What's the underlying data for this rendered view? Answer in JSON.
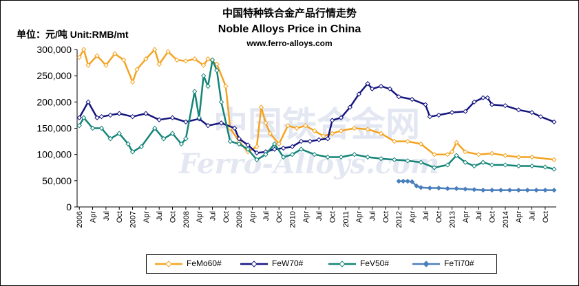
{
  "header": {
    "title_cn": "中国特种铁合金产品行情走势",
    "title_en": "Noble Alloys Price in China",
    "website": "www.ferro-alloys.com",
    "unit": "单位：元/吨 Unit:RMB/mt"
  },
  "watermark": {
    "cn": "中国铁合金网",
    "en": "Ferro-Alloys.com"
  },
  "colors": {
    "FeMo60#": "#f4a321",
    "FeW70#": "#15157e",
    "FeV50#": "#138477",
    "FeTi70#": "#4a7fbd"
  },
  "chart_data": {
    "type": "line",
    "title": "Noble Alloys Price in China",
    "ylabel": "单位：元/吨 Unit:RMB/mt",
    "ylim": [
      0,
      300000
    ],
    "yticks": [
      0,
      50000,
      100000,
      150000,
      200000,
      250000,
      300000
    ],
    "ytick_labels": [
      "0",
      "50,000",
      "100,000",
      "150,000",
      "200,000",
      "250,000",
      "300,000"
    ],
    "x_start": "2006-01",
    "x_end": "2014-12",
    "xtick_labels": [
      "2006",
      "Apr",
      "Jul",
      "Oct",
      "2007",
      "Apr",
      "Jul",
      "Oct",
      "2008",
      "Apr",
      "Jul",
      "Oct",
      "2009",
      "Apr",
      "Jul",
      "Oct",
      "2010",
      "Apr",
      "Jul",
      "Oct",
      "2011",
      "Apr",
      "Jul",
      "Oct",
      "2012",
      "Apr",
      "Jul",
      "Oct",
      "2013",
      "Apr",
      "Jul",
      "Oct",
      "2014",
      "Apr",
      "Jul",
      "Oct"
    ],
    "grid": false,
    "legend_position": "bottom",
    "series": [
      {
        "name": "FeMo60#",
        "points": [
          [
            "2006-01",
            285000
          ],
          [
            "2006-02",
            300000
          ],
          [
            "2006-03",
            270000
          ],
          [
            "2006-05",
            288000
          ],
          [
            "2006-07",
            270000
          ],
          [
            "2006-09",
            292000
          ],
          [
            "2006-11",
            280000
          ],
          [
            "2007-01",
            238000
          ],
          [
            "2007-02",
            262000
          ],
          [
            "2007-04",
            282000
          ],
          [
            "2007-06",
            300000
          ],
          [
            "2007-07",
            272000
          ],
          [
            "2007-09",
            296000
          ],
          [
            "2007-11",
            280000
          ],
          [
            "2008-01",
            278000
          ],
          [
            "2008-03",
            282000
          ],
          [
            "2008-05",
            270000
          ],
          [
            "2008-06",
            282000
          ],
          [
            "2008-08",
            272000
          ],
          [
            "2008-10",
            230000
          ],
          [
            "2008-11",
            150000
          ],
          [
            "2009-01",
            125000
          ],
          [
            "2009-03",
            105000
          ],
          [
            "2009-05",
            115000
          ],
          [
            "2009-06",
            190000
          ],
          [
            "2009-07",
            160000
          ],
          [
            "2009-08",
            140000
          ],
          [
            "2009-10",
            120000
          ],
          [
            "2009-12",
            155000
          ],
          [
            "2010-02",
            150000
          ],
          [
            "2010-04",
            155000
          ],
          [
            "2010-06",
            145000
          ],
          [
            "2010-08",
            135000
          ],
          [
            "2010-10",
            140000
          ],
          [
            "2010-12",
            145000
          ],
          [
            "2011-03",
            150000
          ],
          [
            "2011-06",
            148000
          ],
          [
            "2011-09",
            140000
          ],
          [
            "2011-12",
            125000
          ],
          [
            "2012-03",
            125000
          ],
          [
            "2012-06",
            120000
          ],
          [
            "2012-09",
            100000
          ],
          [
            "2012-12",
            100000
          ],
          [
            "2013-01",
            105000
          ],
          [
            "2013-02",
            123000
          ],
          [
            "2013-04",
            105000
          ],
          [
            "2013-07",
            100000
          ],
          [
            "2013-10",
            102000
          ],
          [
            "2014-01",
            98000
          ],
          [
            "2014-04",
            95000
          ],
          [
            "2014-07",
            95000
          ],
          [
            "2014-12",
            90000
          ]
        ]
      },
      {
        "name": "FeW70#",
        "points": [
          [
            "2006-01",
            170000
          ],
          [
            "2006-03",
            200000
          ],
          [
            "2006-05",
            170000
          ],
          [
            "2006-06",
            172000
          ],
          [
            "2006-08",
            175000
          ],
          [
            "2006-10",
            178000
          ],
          [
            "2007-01",
            172000
          ],
          [
            "2007-04",
            178000
          ],
          [
            "2007-07",
            166000
          ],
          [
            "2007-10",
            170000
          ],
          [
            "2008-01",
            162000
          ],
          [
            "2008-04",
            168000
          ],
          [
            "2008-06",
            155000
          ],
          [
            "2008-09",
            160000
          ],
          [
            "2008-12",
            150000
          ],
          [
            "2009-01",
            130000
          ],
          [
            "2009-03",
            118000
          ],
          [
            "2009-05",
            103000
          ],
          [
            "2009-07",
            105000
          ],
          [
            "2009-09",
            110000
          ],
          [
            "2009-11",
            112000
          ],
          [
            "2010-01",
            115000
          ],
          [
            "2010-03",
            125000
          ],
          [
            "2010-05",
            125000
          ],
          [
            "2010-07",
            128000
          ],
          [
            "2010-09",
            130000
          ],
          [
            "2010-10",
            165000
          ],
          [
            "2010-12",
            170000
          ],
          [
            "2011-02",
            190000
          ],
          [
            "2011-04",
            215000
          ],
          [
            "2011-06",
            235000
          ],
          [
            "2011-07",
            225000
          ],
          [
            "2011-09",
            230000
          ],
          [
            "2011-11",
            225000
          ],
          [
            "2012-01",
            210000
          ],
          [
            "2012-04",
            205000
          ],
          [
            "2012-07",
            195000
          ],
          [
            "2012-08",
            172000
          ],
          [
            "2012-10",
            175000
          ],
          [
            "2013-01",
            180000
          ],
          [
            "2013-04",
            182000
          ],
          [
            "2013-06",
            200000
          ],
          [
            "2013-08",
            208000
          ],
          [
            "2013-09",
            208000
          ],
          [
            "2013-10",
            195000
          ],
          [
            "2014-01",
            193000
          ],
          [
            "2014-04",
            185000
          ],
          [
            "2014-07",
            180000
          ],
          [
            "2014-09",
            172000
          ],
          [
            "2014-12",
            162000
          ]
        ]
      },
      {
        "name": "FeV50#",
        "points": [
          [
            "2006-01",
            155000
          ],
          [
            "2006-02",
            170000
          ],
          [
            "2006-04",
            150000
          ],
          [
            "2006-06",
            150000
          ],
          [
            "2006-08",
            130000
          ],
          [
            "2006-10",
            140000
          ],
          [
            "2006-12",
            120000
          ],
          [
            "2007-01",
            105000
          ],
          [
            "2007-03",
            115000
          ],
          [
            "2007-06",
            150000
          ],
          [
            "2007-08",
            130000
          ],
          [
            "2007-10",
            140000
          ],
          [
            "2007-12",
            120000
          ],
          [
            "2008-01",
            130000
          ],
          [
            "2008-03",
            220000
          ],
          [
            "2008-04",
            170000
          ],
          [
            "2008-05",
            250000
          ],
          [
            "2008-06",
            230000
          ],
          [
            "2008-07",
            280000
          ],
          [
            "2008-08",
            260000
          ],
          [
            "2008-09",
            200000
          ],
          [
            "2008-11",
            125000
          ],
          [
            "2009-01",
            120000
          ],
          [
            "2009-03",
            110000
          ],
          [
            "2009-05",
            90000
          ],
          [
            "2009-07",
            100000
          ],
          [
            "2009-09",
            120000
          ],
          [
            "2009-11",
            95000
          ],
          [
            "2010-01",
            100000
          ],
          [
            "2010-03",
            110000
          ],
          [
            "2010-06",
            100000
          ],
          [
            "2010-09",
            95000
          ],
          [
            "2010-12",
            95000
          ],
          [
            "2011-03",
            100000
          ],
          [
            "2011-06",
            95000
          ],
          [
            "2011-09",
            92000
          ],
          [
            "2011-12",
            90000
          ],
          [
            "2012-03",
            88000
          ],
          [
            "2012-06",
            85000
          ],
          [
            "2012-09",
            75000
          ],
          [
            "2012-12",
            80000
          ],
          [
            "2013-02",
            98000
          ],
          [
            "2013-04",
            85000
          ],
          [
            "2013-06",
            78000
          ],
          [
            "2013-08",
            85000
          ],
          [
            "2013-10",
            80000
          ],
          [
            "2014-01",
            80000
          ],
          [
            "2014-04",
            78000
          ],
          [
            "2014-07",
            78000
          ],
          [
            "2014-10",
            76000
          ],
          [
            "2014-12",
            72000
          ]
        ]
      },
      {
        "name": "FeTi70#",
        "points": [
          [
            "2012-01",
            49000
          ],
          [
            "2012-02",
            49000
          ],
          [
            "2012-03",
            49000
          ],
          [
            "2012-04",
            48000
          ],
          [
            "2012-05",
            40000
          ],
          [
            "2012-06",
            37000
          ],
          [
            "2012-08",
            36000
          ],
          [
            "2012-10",
            36000
          ],
          [
            "2012-12",
            35000
          ],
          [
            "2013-02",
            35000
          ],
          [
            "2013-04",
            34000
          ],
          [
            "2013-06",
            33000
          ],
          [
            "2013-08",
            32000
          ],
          [
            "2013-10",
            32000
          ],
          [
            "2013-12",
            32000
          ],
          [
            "2014-02",
            32000
          ],
          [
            "2014-04",
            32000
          ],
          [
            "2014-06",
            32000
          ],
          [
            "2014-08",
            32000
          ],
          [
            "2014-10",
            32000
          ],
          [
            "2014-12",
            32000
          ]
        ]
      }
    ]
  }
}
